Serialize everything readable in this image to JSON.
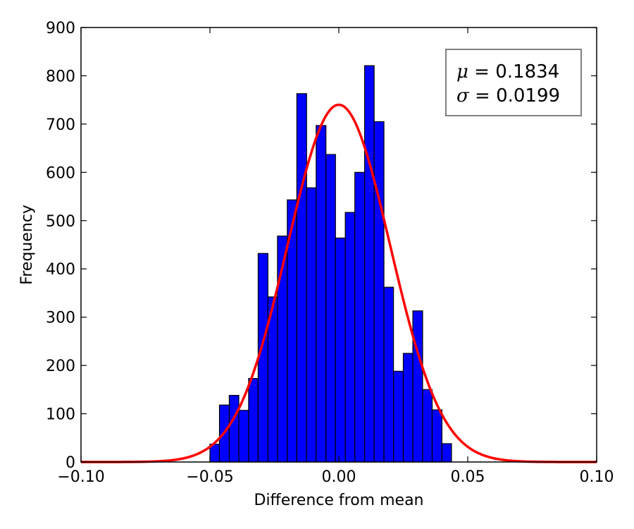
{
  "chart_data": {
    "type": "bar",
    "title": "",
    "xlabel": "Difference from mean",
    "ylabel": "Frequency",
    "xlim": [
      -0.1,
      0.1
    ],
    "ylim": [
      0,
      900
    ],
    "xticks": [
      "−0.10",
      "−0.05",
      "0.00",
      "0.05",
      "0.10"
    ],
    "xtick_values": [
      -0.1,
      -0.05,
      0.0,
      0.05,
      0.1
    ],
    "yticks": [
      "0",
      "100",
      "200",
      "300",
      "400",
      "500",
      "600",
      "700",
      "800",
      "900"
    ],
    "ytick_values": [
      0,
      100,
      200,
      300,
      400,
      500,
      600,
      700,
      800,
      900
    ],
    "grid": false,
    "bar_color": "#0000ff",
    "curve_color": "#ff0000",
    "bin_edges": [
      -0.05,
      -0.0463,
      -0.0425,
      -0.0388,
      -0.035,
      -0.0313,
      -0.0275,
      -0.0238,
      -0.02,
      -0.0163,
      -0.0125,
      -0.0088,
      -0.005,
      -0.0013,
      0.0025,
      0.0062,
      0.01,
      0.0137,
      0.0175,
      0.0212,
      0.025,
      0.0287,
      0.0325,
      0.0362,
      0.04,
      0.0437,
      0.0475
    ],
    "values": [
      37,
      118,
      138,
      107,
      173,
      432,
      342,
      468,
      543,
      763,
      568,
      697,
      637,
      464,
      517,
      600,
      821,
      705,
      362,
      188,
      225,
      313,
      150,
      108,
      38,
      0
    ],
    "fit": {
      "mean": 0.0,
      "std": 0.0199,
      "peak": 740
    },
    "stats_box": {
      "mu_symbol": "μ",
      "mu_value": " = 0.1834",
      "sigma_symbol": "σ",
      "sigma_value": " = 0.0199"
    }
  }
}
